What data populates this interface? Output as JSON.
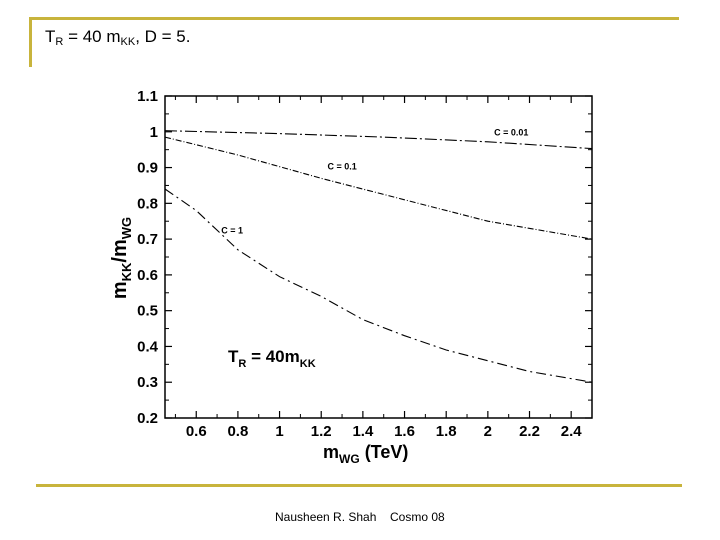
{
  "header": {
    "title_parts": [
      "T",
      "R",
      " = 40 m",
      "KK",
      ", D = 5."
    ]
  },
  "footer": {
    "author": "Nausheen R. Shah",
    "event": "Cosmo 08"
  },
  "theme": {
    "accent": "#c8b43c"
  },
  "chart_data": {
    "type": "line",
    "title": "",
    "xlabel_parts": [
      "m",
      "WG",
      " (TeV)"
    ],
    "ylabel_parts": [
      "m",
      "KK",
      "/m",
      "WG"
    ],
    "xlim": [
      0.45,
      2.5
    ],
    "ylim": [
      0.2,
      1.1
    ],
    "xticks": [
      0.6,
      0.8,
      1,
      1.2,
      1.4,
      1.6,
      1.8,
      2,
      2.2,
      2.4
    ],
    "xtick_labels": [
      "0.6",
      "0.8",
      "1",
      "1.2",
      "1.4",
      "1.6",
      "1.8",
      "2",
      "2.2",
      "2.4"
    ],
    "yticks": [
      0.2,
      0.3,
      0.4,
      0.5,
      0.6,
      0.7,
      0.8,
      0.9,
      1,
      1.1
    ],
    "ytick_labels": [
      "0.2",
      "0.3",
      "0.4",
      "0.5",
      "0.6",
      "0.7",
      "0.8",
      "0.9",
      "1",
      "1.1"
    ],
    "annotation_parts": [
      "T",
      "R",
      " = 40m",
      "KK"
    ],
    "series": [
      {
        "name": "C = 0.01",
        "dash": "12 3 2 3",
        "x": [
          0.45,
          1.0,
          1.5,
          2.0,
          2.5
        ],
        "y": [
          1.003,
          0.995,
          0.985,
          0.972,
          0.953
        ]
      },
      {
        "name": "C = 0.1",
        "dash": "6 2 1 2",
        "x": [
          0.45,
          0.8,
          1.2,
          1.6,
          2.0,
          2.5
        ],
        "y": [
          0.985,
          0.935,
          0.87,
          0.81,
          0.75,
          0.7
        ]
      },
      {
        "name": "C = 1",
        "dash": "10 4 2 4",
        "x": [
          0.45,
          0.6,
          0.8,
          1.0,
          1.2,
          1.4,
          1.6,
          1.8,
          2.0,
          2.2,
          2.5
        ],
        "y": [
          0.84,
          0.78,
          0.67,
          0.595,
          0.54,
          0.475,
          0.43,
          0.39,
          0.36,
          0.33,
          0.3
        ]
      }
    ],
    "series_labels": [
      {
        "text": "C = 0.01",
        "x": 2.03,
        "y": 0.99
      },
      {
        "text": "C = 0.1",
        "x": 1.23,
        "y": 0.895
      },
      {
        "text": "C = 1",
        "x": 0.72,
        "y": 0.715
      }
    ]
  }
}
